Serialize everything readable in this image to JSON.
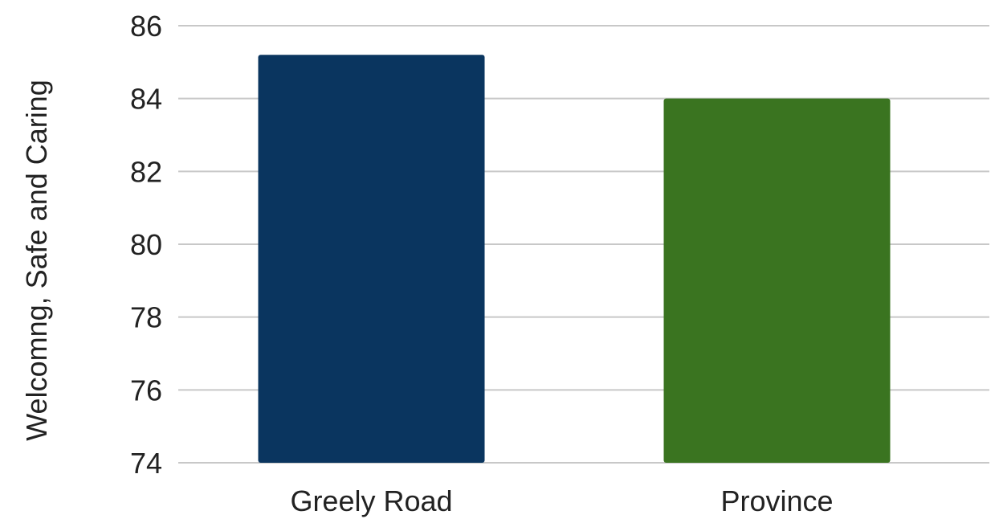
{
  "chart_data": {
    "type": "bar",
    "categories": [
      "Greely Road",
      "Province"
    ],
    "values": [
      85.2,
      84
    ],
    "colors": [
      "#0a355f",
      "#3a7420"
    ],
    "title": "",
    "xlabel": "",
    "ylabel": "Welcomng, Safe and Caring",
    "ylim": [
      74,
      86
    ],
    "yticks": [
      74,
      76,
      78,
      80,
      82,
      84,
      86
    ],
    "grid": true,
    "legend": "none"
  }
}
